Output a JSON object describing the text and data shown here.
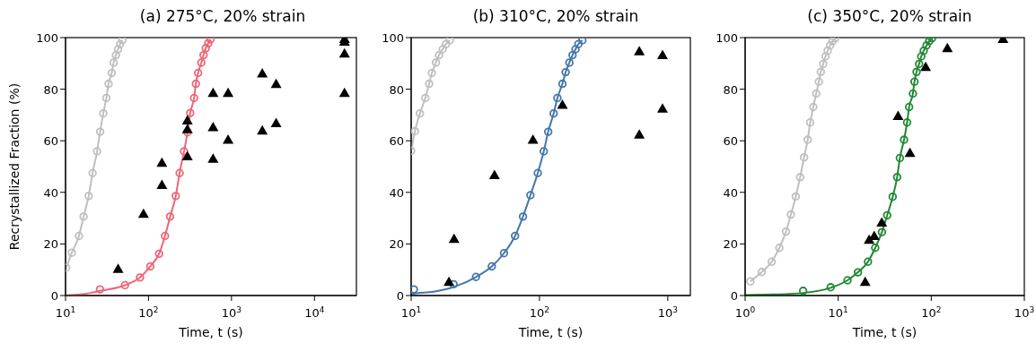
{
  "chart_data": [
    {
      "type": "line",
      "title": "(a) 275°C, 20% strain",
      "xlabel": "Time, t (s)",
      "ylabel": "Recrystallized Fraction (%)",
      "log": "x",
      "xlim": [
        10,
        32000
      ],
      "xticks": [
        {
          "value": 10,
          "label": "10$^{1}$"
        },
        {
          "value": 100,
          "label": "10$^{2}$"
        },
        {
          "value": 1000,
          "label": "10$^{3}$"
        },
        {
          "value": 10000,
          "label": "10$^{4}$"
        }
      ],
      "ylim": [
        0,
        100
      ],
      "yticks": [
        0,
        20,
        40,
        60,
        80,
        100
      ],
      "series": [
        {
          "type": "line",
          "color": "#bfbfbf",
          "marker": "circle",
          "x": [
            10.2,
            11.9,
            14.5,
            16.5,
            19,
            21.2,
            24,
            26.1,
            28.5,
            31,
            33,
            36,
            38,
            40.5,
            43,
            45.5,
            48.4
          ],
          "values": [
            10.8,
            16.6,
            23.1,
            30.6,
            38.6,
            47.5,
            55.9,
            63.5,
            70.6,
            76.6,
            82.1,
            86.3,
            90.3,
            93.2,
            95.5,
            97.5,
            99
          ]
        },
        {
          "type": "line",
          "color": "#ee6677",
          "marker": "none",
          "x": [
            10,
            15,
            20,
            26,
            52,
            79,
            105,
            134,
            158,
            182,
            213,
            237,
            268,
            295,
            318,
            354,
            372,
            396,
            433,
            460,
            490,
            525,
            560
          ],
          "values": [
            0.1,
            0.4,
            1,
            1.8,
            4,
            7,
            11.3,
            16.2,
            23.1,
            30.6,
            38.6,
            47.5,
            55.9,
            63.3,
            70.8,
            76.6,
            82.1,
            86.3,
            90.3,
            93.2,
            95.9,
            97.8,
            99.3
          ]
        },
        {
          "type": "scatter",
          "color": "#ee6677",
          "marker": "circle",
          "x": [
            26,
            52,
            79,
            105,
            134,
            158,
            182,
            213,
            237,
            268,
            295,
            318,
            354,
            372,
            396,
            433,
            460,
            490,
            525,
            560
          ],
          "values": [
            2.4,
            4,
            7,
            11.3,
            16.2,
            23.1,
            30.6,
            38.6,
            47.5,
            55.9,
            63.3,
            70.8,
            76.6,
            82.1,
            86.3,
            90.3,
            93.2,
            95.9,
            97.8,
            99.3
          ]
        },
        {
          "type": "scatter",
          "color": "#000000",
          "marker": "triangle",
          "x": [
            43,
            87,
            145,
            145,
            294,
            294,
            294,
            600,
            600,
            600,
            910,
            910,
            2350,
            2350,
            3450,
            3450,
            23000,
            23000,
            23000,
            23000
          ],
          "values": [
            10.3,
            31.7,
            51.5,
            42.9,
            67.9,
            64.5,
            54,
            78.6,
            65.3,
            53,
            78.6,
            60.4,
            86.1,
            64,
            82,
            66.8,
            99.5,
            98.4,
            93.8,
            78.6
          ]
        }
      ]
    },
    {
      "type": "line",
      "title": "(b) 310°C, 20% strain",
      "xlabel": "Time, t (s)",
      "log": "x",
      "xlim": [
        10,
        1500
      ],
      "xticks": [
        {
          "value": 10,
          "label": "10$^{1}$"
        },
        {
          "value": 100,
          "label": "10$^{2}$"
        },
        {
          "value": 1000,
          "label": "10$^{3}$"
        }
      ],
      "ylim": [
        0,
        100
      ],
      "yticks": [
        0,
        20,
        40,
        60,
        80,
        100
      ],
      "series": [
        {
          "type": "line",
          "color": "#bfbfbf",
          "marker": "circle",
          "x": [
            10,
            10.7,
            11.7,
            12.9,
            13.8,
            14.5,
            15.6,
            16.5,
            17.6,
            18.7,
            20
          ],
          "values": [
            56.1,
            63.7,
            70.6,
            76.6,
            82.1,
            86.3,
            90.3,
            93.2,
            95.5,
            97.5,
            99
          ]
        },
        {
          "type": "line",
          "color": "#4477aa",
          "marker": "none",
          "x": [
            10,
            10.5,
            15,
            21.4,
            32,
            42.5,
            52.9,
            64.5,
            74.4,
            85,
            97,
            108,
            117,
            129,
            138,
            151,
            160,
            171,
            181,
            191,
            201,
            216
          ],
          "values": [
            0.5,
            0.7,
            1.5,
            3.3,
            7.2,
            11.3,
            16.4,
            23.1,
            30.6,
            38.9,
            47.5,
            55.9,
            63.5,
            70.6,
            76.6,
            82.1,
            86.6,
            90.3,
            93.2,
            95.5,
            97.5,
            99
          ]
        },
        {
          "type": "scatter",
          "color": "#4477aa",
          "marker": "circle",
          "x": [
            10.5,
            21.4,
            32,
            42.5,
            52.9,
            64.5,
            74.4,
            85,
            97,
            108,
            117,
            129,
            138,
            151,
            160,
            171,
            181,
            191,
            201,
            216
          ],
          "values": [
            2.4,
            4.4,
            7.2,
            11.3,
            16.4,
            23.1,
            30.6,
            38.9,
            47.5,
            55.9,
            63.5,
            70.6,
            76.6,
            82.1,
            86.6,
            90.3,
            93.2,
            95.5,
            97.5,
            99
          ]
        },
        {
          "type": "scatter",
          "color": "#000000",
          "marker": "triangle",
          "x": [
            19.7,
            21.6,
            44.6,
            89,
            151,
            600,
            600,
            910,
            910
          ],
          "values": [
            5.3,
            22,
            46.7,
            60.4,
            74,
            94.7,
            62.4,
            93.2,
            72.5
          ]
        }
      ]
    },
    {
      "type": "line",
      "title": "(c) 350°C, 20% strain",
      "xlabel": "Time, t (s)",
      "log": "x",
      "xlim": [
        1,
        1000
      ],
      "xticks": [
        {
          "value": 1,
          "label": "10$^{0}$"
        },
        {
          "value": 10,
          "label": "10$^{1}$"
        },
        {
          "value": 100,
          "label": "10$^{2}$"
        },
        {
          "value": 1000,
          "label": "10$^{3}$"
        }
      ],
      "ylim": [
        0,
        100
      ],
      "yticks": [
        0,
        20,
        40,
        60,
        80,
        100
      ],
      "series": [
        {
          "type": "line",
          "color": "#bfbfbf",
          "marker": "circle",
          "x": [
            1.14,
            1.51,
            1.93,
            2.33,
            2.75,
            3.1,
            3.5,
            3.9,
            4.3,
            4.7,
            5,
            5.4,
            5.8,
            6.2,
            6.5,
            6.9,
            7.3,
            7.7,
            8.2,
            8.7,
            9.3
          ],
          "values": [
            5.5,
            9.1,
            13.1,
            18.5,
            24.8,
            31.4,
            38.4,
            45.9,
            53.6,
            60.4,
            67.1,
            73.1,
            78.3,
            82.9,
            86.7,
            89.8,
            92.7,
            94.9,
            97,
            98.6,
            99.8
          ]
        },
        {
          "type": "line",
          "color": "#228833",
          "marker": "none",
          "x": [
            1,
            2,
            4.2,
            8.3,
            12.6,
            16.3,
            20.9,
            25,
            29.5,
            33.6,
            38.5,
            43,
            46,
            51,
            55,
            57.8,
            63.5,
            66,
            69.5,
            74,
            78,
            83,
            89,
            95,
            102
          ],
          "values": [
            0.2,
            0.4,
            1,
            3,
            5.9,
            9,
            13.1,
            18.5,
            24.6,
            31.1,
            38.3,
            45.9,
            53.3,
            60.4,
            67.1,
            73.1,
            78.3,
            82.9,
            86.7,
            89.8,
            92.7,
            94.9,
            97,
            98.6,
            99.8
          ]
        },
        {
          "type": "scatter",
          "color": "#228833",
          "marker": "circle",
          "x": [
            4.2,
            8.3,
            12.6,
            16.3,
            20.9,
            25,
            29.5,
            33.6,
            38.5,
            43,
            46,
            51,
            55,
            57.8,
            63.5,
            66,
            69.5,
            74,
            78,
            83,
            89,
            95,
            102
          ],
          "values": [
            1.8,
            3.2,
            5.9,
            9,
            13.1,
            18.5,
            24.6,
            31.1,
            38.3,
            45.9,
            53.3,
            60.4,
            67.1,
            73.1,
            78.3,
            82.9,
            86.7,
            89.8,
            92.7,
            94.9,
            97,
            98.6,
            99.8
          ]
        },
        {
          "type": "scatter",
          "color": "#000000",
          "marker": "triangle",
          "x": [
            19.5,
            21.5,
            24.4,
            29.4,
            44,
            59,
            87,
            149,
            590
          ],
          "values": [
            5.3,
            21.6,
            23.1,
            28.3,
            69.6,
            55.3,
            88.6,
            95.9,
            99.5
          ]
        }
      ]
    }
  ]
}
